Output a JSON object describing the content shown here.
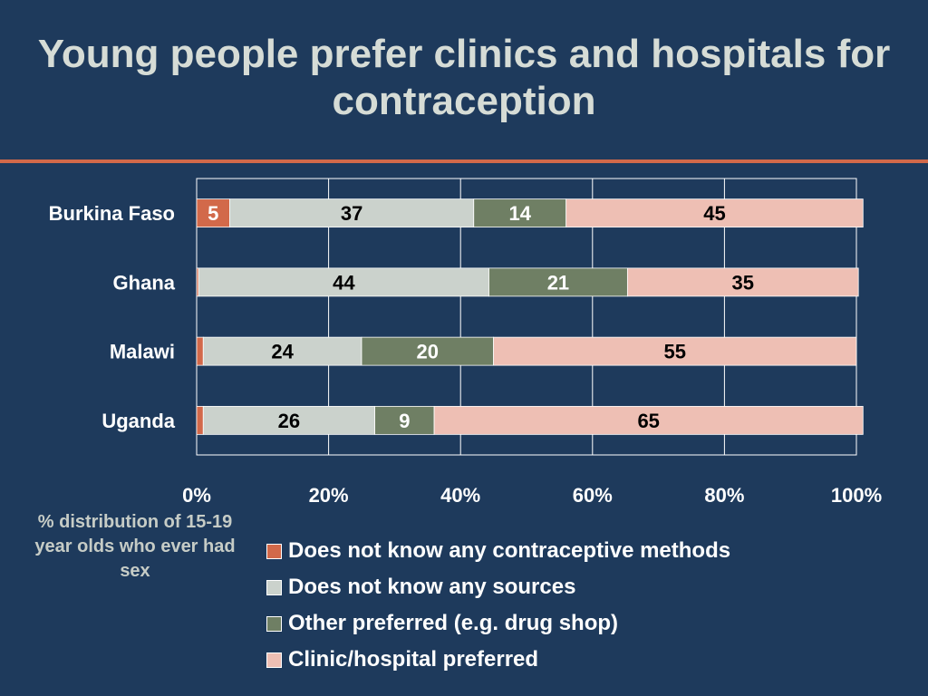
{
  "title_line1": "Young people prefer clinics and hospitals for",
  "title_line2": "contraception",
  "note": "% distribution of 15-19 year olds who ever had sex",
  "chart_data": {
    "type": "bar",
    "orientation": "horizontal",
    "stacked": true,
    "categories": [
      "Burkina Faso",
      "Ghana",
      "Malawi",
      "Uganda"
    ],
    "series": [
      {
        "name": "Does not know any contraceptive methods",
        "values": [
          5,
          0.3,
          1,
          1
        ],
        "labels": [
          "5",
          "",
          "",
          ""
        ],
        "color": "#d2694a"
      },
      {
        "name": "Does not know any sources",
        "values": [
          37,
          44,
          24,
          26
        ],
        "labels": [
          "37",
          "44",
          "24",
          "26"
        ],
        "color": "#cbd2cc"
      },
      {
        "name": "Other preferred (e.g. drug shop)",
        "values": [
          14,
          21,
          20,
          9
        ],
        "labels": [
          "14",
          "21",
          "20",
          "9"
        ],
        "color": "#6f7f64"
      },
      {
        "name": "Clinic/hospital preferred",
        "values": [
          45,
          35,
          55,
          65
        ],
        "labels": [
          "45",
          "35",
          "55",
          "65"
        ],
        "color": "#eebfb4"
      }
    ],
    "xlim": [
      0,
      100
    ],
    "xticks": [
      "0%",
      "20%",
      "40%",
      "60%",
      "80%",
      "100%"
    ],
    "grid": true,
    "legend": "bottom",
    "colors": {
      "background": "#1e3a5c",
      "accent": "#d2694a",
      "gridline": "#ffffff"
    }
  }
}
